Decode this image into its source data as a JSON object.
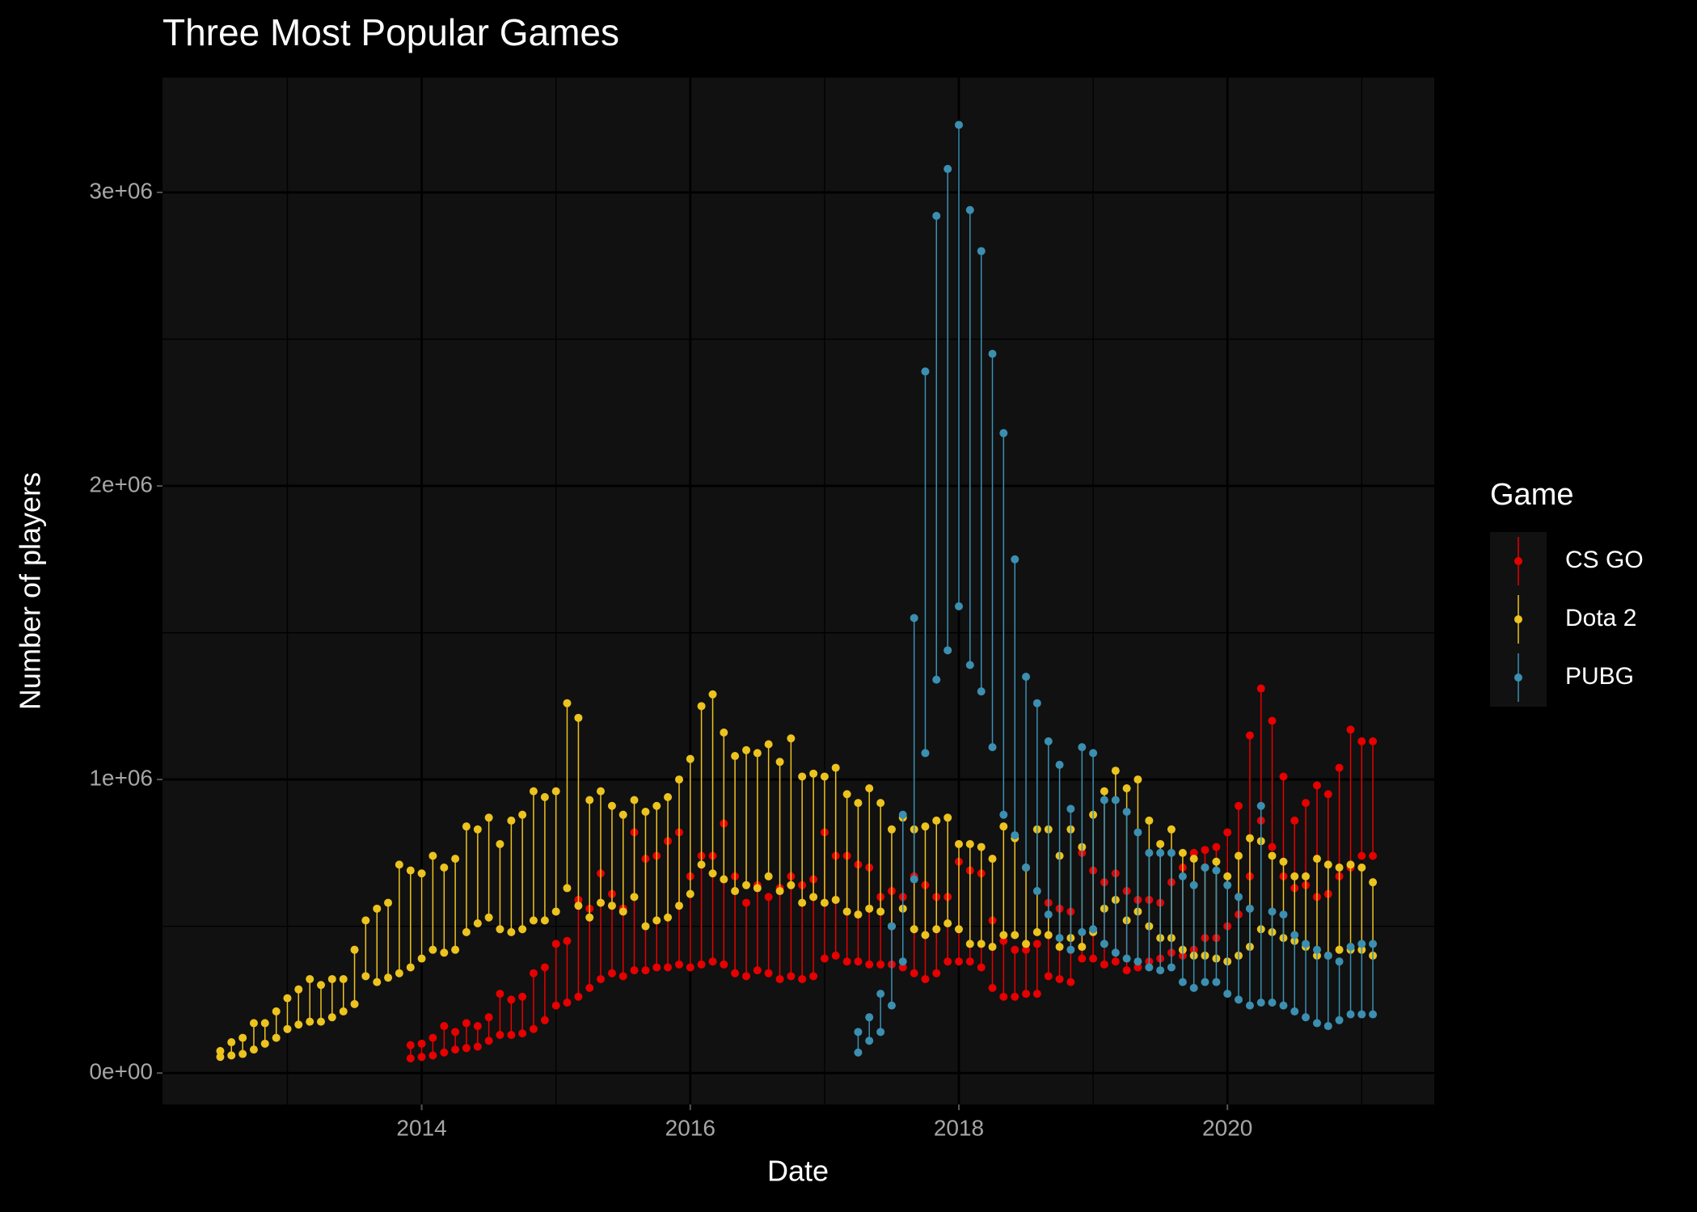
{
  "chart_data": {
    "type": "linerange",
    "title": "Three Most Popular Games",
    "x_label": "Date",
    "y_label": "Number of players",
    "legend_title": "Game",
    "legend_position": "right",
    "grid": true,
    "xlim": [
      2012.07,
      2021.54
    ],
    "xticks": [
      2014,
      2016,
      2018,
      2020
    ],
    "ylim": [
      -107000,
      3391000
    ],
    "yticks": [
      {
        "value": 0,
        "label": "0e+00"
      },
      {
        "value": 1000000,
        "label": "1e+06"
      },
      {
        "value": 2000000,
        "label": "2e+06"
      },
      {
        "value": 3000000,
        "label": "3e+06"
      }
    ],
    "series": [
      {
        "name": "CS GO",
        "color": "#e60000",
        "x": [
          2013.917,
          2014,
          2014.083,
          2014.167,
          2014.25,
          2014.333,
          2014.417,
          2014.5,
          2014.583,
          2014.667,
          2014.75,
          2014.833,
          2014.917,
          2015,
          2015.083,
          2015.167,
          2015.25,
          2015.333,
          2015.417,
          2015.5,
          2015.583,
          2015.667,
          2015.75,
          2015.833,
          2015.917,
          2016,
          2016.083,
          2016.167,
          2016.25,
          2016.333,
          2016.417,
          2016.5,
          2016.583,
          2016.667,
          2016.75,
          2016.833,
          2016.917,
          2017,
          2017.083,
          2017.167,
          2017.25,
          2017.333,
          2017.417,
          2017.5,
          2017.583,
          2017.667,
          2017.75,
          2017.833,
          2017.917,
          2018,
          2018.083,
          2018.167,
          2018.25,
          2018.333,
          2018.417,
          2018.5,
          2018.583,
          2018.667,
          2018.75,
          2018.833,
          2018.917,
          2019,
          2019.083,
          2019.167,
          2019.25,
          2019.333,
          2019.417,
          2019.5,
          2019.583,
          2019.667,
          2019.75,
          2019.833,
          2019.917,
          2020,
          2020.083,
          2020.167,
          2020.25,
          2020.333,
          2020.417,
          2020.5,
          2020.583,
          2020.667,
          2020.75,
          2020.833,
          2020.917,
          2021,
          2021.083
        ],
        "low": [
          50000,
          55000,
          60000,
          70000,
          80000,
          85000,
          90000,
          110000,
          130000,
          130000,
          135000,
          150000,
          180000,
          230000,
          240000,
          260000,
          290000,
          320000,
          340000,
          330000,
          350000,
          350000,
          360000,
          360000,
          370000,
          360000,
          370000,
          380000,
          370000,
          340000,
          330000,
          350000,
          340000,
          320000,
          330000,
          320000,
          330000,
          390000,
          400000,
          380000,
          380000,
          370000,
          370000,
          370000,
          360000,
          340000,
          320000,
          340000,
          380000,
          380000,
          380000,
          360000,
          290000,
          260000,
          260000,
          270000,
          270000,
          330000,
          320000,
          310000,
          390000,
          390000,
          370000,
          380000,
          350000,
          360000,
          380000,
          390000,
          410000,
          400000,
          420000,
          460000,
          460000,
          500000,
          540000,
          670000,
          860000,
          770000,
          670000,
          630000,
          640000,
          600000,
          610000,
          670000,
          700000,
          740000,
          740000
        ],
        "high": [
          95000,
          100000,
          120000,
          160000,
          140000,
          170000,
          160000,
          190000,
          270000,
          250000,
          260000,
          340000,
          360000,
          440000,
          450000,
          590000,
          560000,
          680000,
          610000,
          560000,
          820000,
          730000,
          740000,
          790000,
          820000,
          670000,
          740000,
          740000,
          850000,
          670000,
          580000,
          640000,
          600000,
          630000,
          670000,
          640000,
          660000,
          820000,
          740000,
          740000,
          710000,
          700000,
          600000,
          620000,
          600000,
          670000,
          640000,
          600000,
          600000,
          720000,
          690000,
          680000,
          520000,
          450000,
          420000,
          420000,
          440000,
          580000,
          560000,
          550000,
          750000,
          690000,
          650000,
          680000,
          620000,
          590000,
          590000,
          580000,
          650000,
          700000,
          750000,
          760000,
          770000,
          820000,
          910000,
          1150000,
          1310000,
          1200000,
          1010000,
          860000,
          920000,
          980000,
          950000,
          1040000,
          1170000,
          1130000,
          1130000
        ]
      },
      {
        "name": "Dota 2",
        "color": "#ecc31f",
        "x": [
          2012.5,
          2012.583,
          2012.667,
          2012.75,
          2012.833,
          2012.917,
          2013,
          2013.083,
          2013.167,
          2013.25,
          2013.333,
          2013.417,
          2013.5,
          2013.583,
          2013.667,
          2013.75,
          2013.833,
          2013.917,
          2014,
          2014.083,
          2014.167,
          2014.25,
          2014.333,
          2014.417,
          2014.5,
          2014.583,
          2014.667,
          2014.75,
          2014.833,
          2014.917,
          2015,
          2015.083,
          2015.167,
          2015.25,
          2015.333,
          2015.417,
          2015.5,
          2015.583,
          2015.667,
          2015.75,
          2015.833,
          2015.917,
          2016,
          2016.083,
          2016.167,
          2016.25,
          2016.333,
          2016.417,
          2016.5,
          2016.583,
          2016.667,
          2016.75,
          2016.833,
          2016.917,
          2017,
          2017.083,
          2017.167,
          2017.25,
          2017.333,
          2017.417,
          2017.5,
          2017.583,
          2017.667,
          2017.75,
          2017.833,
          2017.917,
          2018,
          2018.083,
          2018.167,
          2018.25,
          2018.333,
          2018.417,
          2018.5,
          2018.583,
          2018.667,
          2018.75,
          2018.833,
          2018.917,
          2019,
          2019.083,
          2019.167,
          2019.25,
          2019.333,
          2019.417,
          2019.5,
          2019.583,
          2019.667,
          2019.75,
          2019.833,
          2019.917,
          2020,
          2020.083,
          2020.167,
          2020.25,
          2020.333,
          2020.417,
          2020.5,
          2020.583,
          2020.667,
          2020.75,
          2020.833,
          2020.917,
          2021,
          2021.083
        ],
        "low": [
          55000,
          60000,
          65000,
          80000,
          100000,
          120000,
          150000,
          165000,
          175000,
          175000,
          190000,
          210000,
          235000,
          330000,
          310000,
          325000,
          340000,
          360000,
          390000,
          420000,
          410000,
          420000,
          480000,
          510000,
          530000,
          490000,
          480000,
          490000,
          520000,
          520000,
          550000,
          630000,
          570000,
          530000,
          580000,
          570000,
          550000,
          600000,
          500000,
          520000,
          530000,
          570000,
          610000,
          710000,
          680000,
          660000,
          620000,
          640000,
          630000,
          670000,
          620000,
          640000,
          580000,
          600000,
          580000,
          590000,
          550000,
          540000,
          560000,
          550000,
          500000,
          560000,
          490000,
          470000,
          490000,
          510000,
          490000,
          440000,
          440000,
          430000,
          470000,
          470000,
          440000,
          480000,
          470000,
          430000,
          460000,
          430000,
          480000,
          560000,
          590000,
          520000,
          550000,
          500000,
          460000,
          460000,
          420000,
          400000,
          400000,
          390000,
          380000,
          400000,
          430000,
          490000,
          480000,
          460000,
          450000,
          430000,
          400000,
          400000,
          420000,
          420000,
          420000,
          400000
        ],
        "high": [
          75000,
          105000,
          120000,
          170000,
          170000,
          210000,
          255000,
          285000,
          320000,
          300000,
          320000,
          320000,
          420000,
          520000,
          560000,
          580000,
          710000,
          690000,
          680000,
          740000,
          700000,
          730000,
          840000,
          830000,
          870000,
          780000,
          860000,
          880000,
          960000,
          940000,
          960000,
          1260000,
          1210000,
          930000,
          960000,
          910000,
          880000,
          930000,
          890000,
          910000,
          940000,
          1000000,
          1070000,
          1250000,
          1290000,
          1160000,
          1080000,
          1100000,
          1090000,
          1120000,
          1060000,
          1140000,
          1010000,
          1020000,
          1010000,
          1040000,
          950000,
          920000,
          970000,
          920000,
          830000,
          870000,
          830000,
          840000,
          860000,
          870000,
          780000,
          780000,
          770000,
          730000,
          840000,
          800000,
          700000,
          830000,
          830000,
          740000,
          830000,
          770000,
          880000,
          960000,
          1030000,
          970000,
          1000000,
          860000,
          780000,
          830000,
          750000,
          730000,
          700000,
          720000,
          670000,
          740000,
          800000,
          790000,
          740000,
          720000,
          670000,
          670000,
          730000,
          710000,
          700000,
          710000,
          700000,
          650000
        ]
      },
      {
        "name": "PUBG",
        "color": "#3b8fb1",
        "x": [
          2017.25,
          2017.333,
          2017.417,
          2017.5,
          2017.583,
          2017.667,
          2017.75,
          2017.833,
          2017.917,
          2018,
          2018.083,
          2018.167,
          2018.25,
          2018.333,
          2018.417,
          2018.5,
          2018.583,
          2018.667,
          2018.75,
          2018.833,
          2018.917,
          2019,
          2019.083,
          2019.167,
          2019.25,
          2019.333,
          2019.417,
          2019.5,
          2019.583,
          2019.667,
          2019.75,
          2019.833,
          2019.917,
          2020,
          2020.083,
          2020.167,
          2020.25,
          2020.333,
          2020.417,
          2020.5,
          2020.583,
          2020.667,
          2020.75,
          2020.833,
          2020.917,
          2021,
          2021.083
        ],
        "low": [
          70000,
          110000,
          140000,
          230000,
          380000,
          660000,
          1090000,
          1340000,
          1440000,
          1590000,
          1390000,
          1300000,
          1110000,
          880000,
          810000,
          700000,
          620000,
          540000,
          460000,
          420000,
          480000,
          490000,
          440000,
          410000,
          390000,
          380000,
          360000,
          350000,
          360000,
          310000,
          290000,
          310000,
          310000,
          270000,
          250000,
          230000,
          240000,
          240000,
          230000,
          210000,
          190000,
          170000,
          160000,
          180000,
          200000,
          200000,
          200000
        ],
        "high": [
          140000,
          190000,
          270000,
          500000,
          880000,
          1550000,
          2390000,
          2920000,
          3080000,
          3230000,
          2940000,
          2800000,
          2450000,
          2180000,
          1750000,
          1350000,
          1260000,
          1130000,
          1050000,
          900000,
          1110000,
          1090000,
          930000,
          930000,
          890000,
          820000,
          750000,
          750000,
          750000,
          670000,
          640000,
          700000,
          690000,
          640000,
          600000,
          560000,
          910000,
          550000,
          540000,
          470000,
          440000,
          420000,
          400000,
          380000,
          430000,
          440000,
          440000
        ]
      }
    ]
  }
}
